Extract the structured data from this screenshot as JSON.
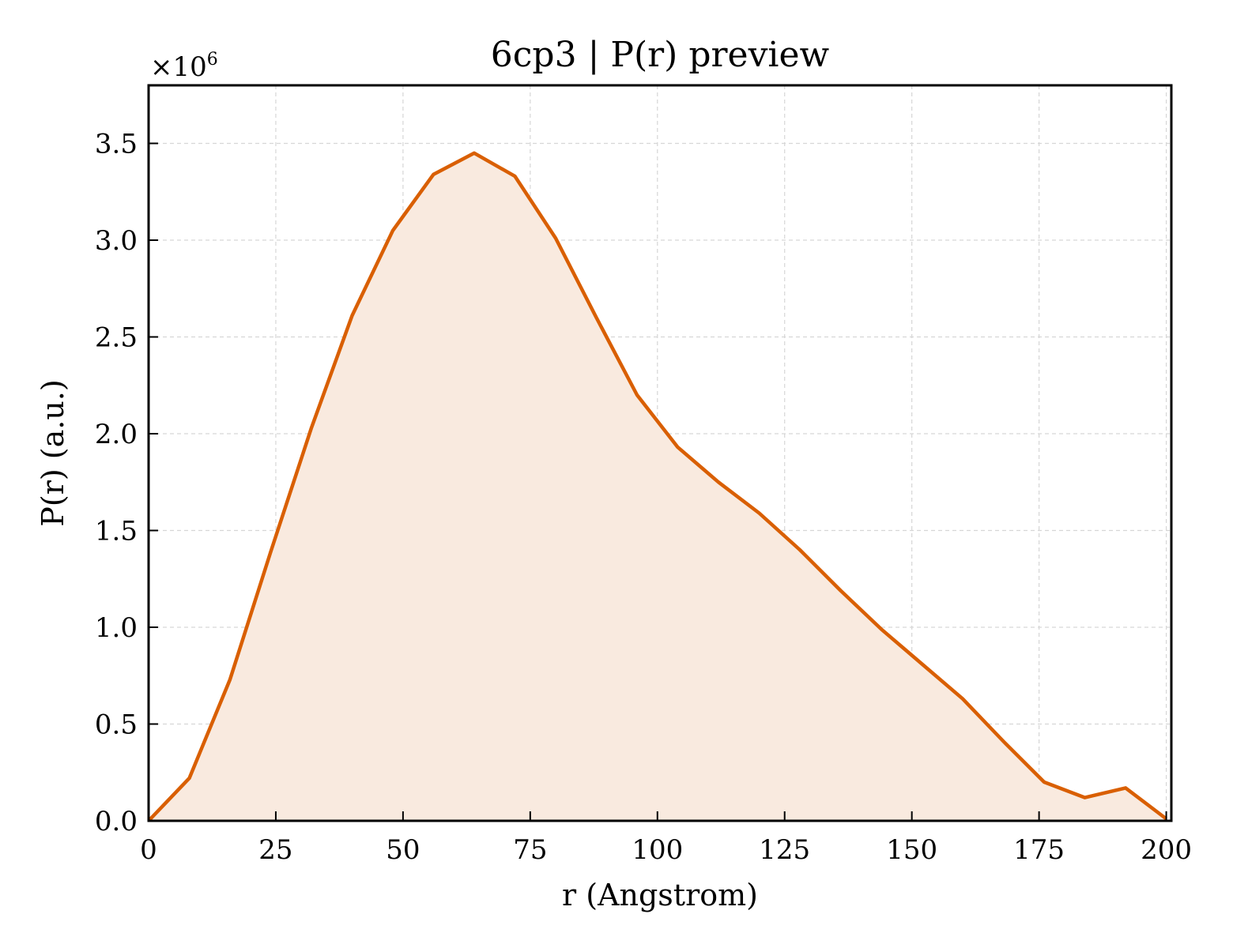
{
  "chart_data": {
    "type": "area",
    "title": "6cp3 | P(r) preview",
    "xlabel": "r (Angstrom)",
    "ylabel": "P(r) (a.u.)",
    "y_offset_text": "×10",
    "y_offset_exponent": "6",
    "xlim": [
      0,
      201
    ],
    "ylim": [
      0,
      3.8
    ],
    "xticks": [
      0,
      25,
      50,
      75,
      100,
      125,
      150,
      175,
      200
    ],
    "xtick_labels": [
      "0",
      "25",
      "50",
      "75",
      "100",
      "125",
      "150",
      "175",
      "200"
    ],
    "yticks": [
      0,
      0.5,
      1.0,
      1.5,
      2.0,
      2.5,
      3.0,
      3.5
    ],
    "ytick_labels": [
      "0.0",
      "0.5",
      "1.0",
      "1.5",
      "2.0",
      "2.5",
      "3.0",
      "3.5"
    ],
    "grid": true,
    "line_color": "#d95f02",
    "fill_color": "#f9eadf",
    "series": [
      {
        "x": [
          0,
          8,
          16,
          24,
          32,
          40,
          48,
          56,
          64,
          72,
          80,
          88,
          96,
          104,
          112,
          120,
          128,
          136,
          144,
          152,
          160,
          168,
          176,
          184,
          192,
          200
        ],
        "values": [
          0.0,
          0.22,
          0.73,
          1.39,
          2.03,
          2.61,
          3.05,
          3.34,
          3.45,
          3.33,
          3.01,
          2.6,
          2.2,
          1.93,
          1.75,
          1.59,
          1.4,
          1.19,
          0.99,
          0.81,
          0.63,
          0.41,
          0.2,
          0.12,
          0.17,
          0.01
        ]
      }
    ]
  }
}
